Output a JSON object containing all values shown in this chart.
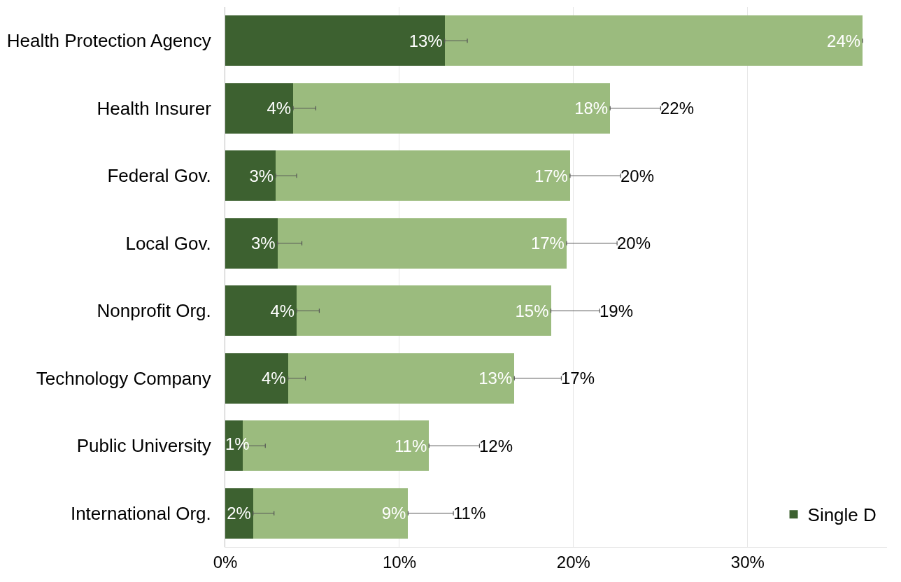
{
  "chart_data": {
    "type": "bar",
    "orientation": "horizontal",
    "stacked": true,
    "categories": [
      "Health Protection Agency",
      "Health Insurer",
      "Federal Gov.",
      "Local Gov.",
      "Nonprofit Org.",
      "Technology Company",
      "Public University",
      "International Org."
    ],
    "series": [
      {
        "name": "Single D",
        "color": "#3d6130",
        "values": [
          12.6,
          3.9,
          2.9,
          3.0,
          4.1,
          3.6,
          1.0,
          1.6
        ],
        "value_labels": [
          "13%",
          "4%",
          "3%",
          "3%",
          "4%",
          "4%",
          "1%",
          "2%"
        ],
        "errors": [
          [
            12.6,
            13.9
          ],
          [
            3.9,
            5.2
          ],
          [
            2.9,
            4.1
          ],
          [
            3.0,
            4.4
          ],
          [
            4.1,
            5.4
          ],
          [
            3.6,
            4.6
          ],
          [
            1.0,
            2.3
          ],
          [
            1.6,
            2.8
          ]
        ]
      },
      {
        "color": "#9bbb7e",
        "values": [
          24.0,
          18.2,
          16.9,
          16.6,
          14.6,
          13.0,
          10.7,
          8.9
        ],
        "value_labels": [
          "24%",
          "18%",
          "17%",
          "17%",
          "15%",
          "13%",
          "11%",
          "9%"
        ],
        "errors": [
          null,
          [
            22.1,
            25.0
          ],
          [
            19.8,
            22.7
          ],
          [
            19.6,
            22.5
          ],
          [
            18.7,
            21.5
          ],
          [
            16.6,
            19.3
          ],
          [
            11.7,
            14.6
          ],
          [
            10.5,
            13.1
          ]
        ]
      }
    ],
    "totals": [
      null,
      "22%",
      "20%",
      "20%",
      "19%",
      "17%",
      "12%",
      "11%"
    ],
    "xlim": [
      0,
      38
    ],
    "xticks": [
      {
        "value": 0,
        "label": "0%"
      },
      {
        "value": 10,
        "label": "10%"
      },
      {
        "value": 20,
        "label": "20%"
      },
      {
        "value": 30,
        "label": "30%"
      }
    ],
    "grid": "x",
    "legend": "bottom right"
  }
}
